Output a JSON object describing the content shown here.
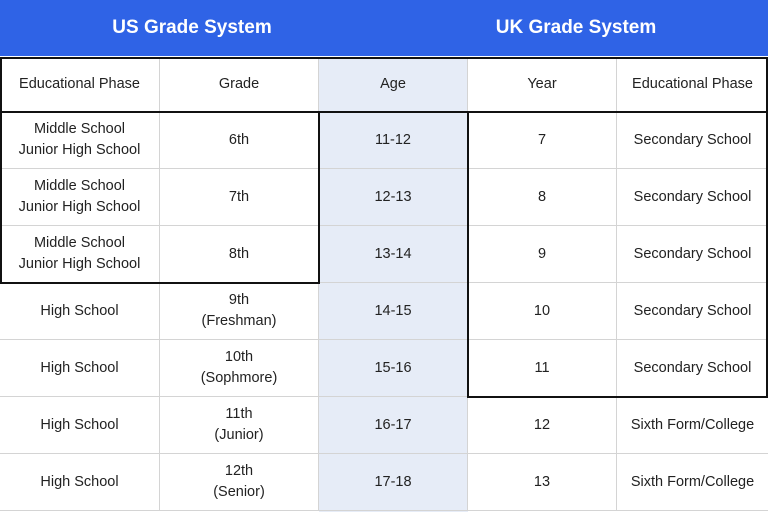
{
  "header": {
    "us_title": "US Grade System",
    "uk_title": "UK Grade System"
  },
  "table": {
    "columns": [
      "Educational Phase",
      "Grade",
      "Age",
      "Year",
      "Educational Phase"
    ],
    "rows": [
      [
        "Middle School\nJunior High School",
        "6th",
        "11-12",
        "7",
        "Secondary School"
      ],
      [
        "Middle School\nJunior High School",
        "7th",
        "12-13",
        "8",
        "Secondary School"
      ],
      [
        "Middle School\nJunior High School",
        "8th",
        "13-14",
        "9",
        "Secondary School"
      ],
      [
        "High School",
        "9th\n(Freshman)",
        "14-15",
        "10",
        "Secondary School"
      ],
      [
        "High School",
        "10th\n(Sophmore)",
        "15-16",
        "11",
        "Secondary School"
      ],
      [
        "High School",
        "11th\n(Junior)",
        "16-17",
        "12",
        "Sixth Form/College"
      ],
      [
        "High School",
        "12th\n(Senior)",
        "17-18",
        "13",
        "Sixth Form/College"
      ]
    ]
  },
  "colors": {
    "header_bg": "#2f63e6",
    "age_column_bg": "#e6ecf7",
    "highlight_border": "#111111"
  }
}
